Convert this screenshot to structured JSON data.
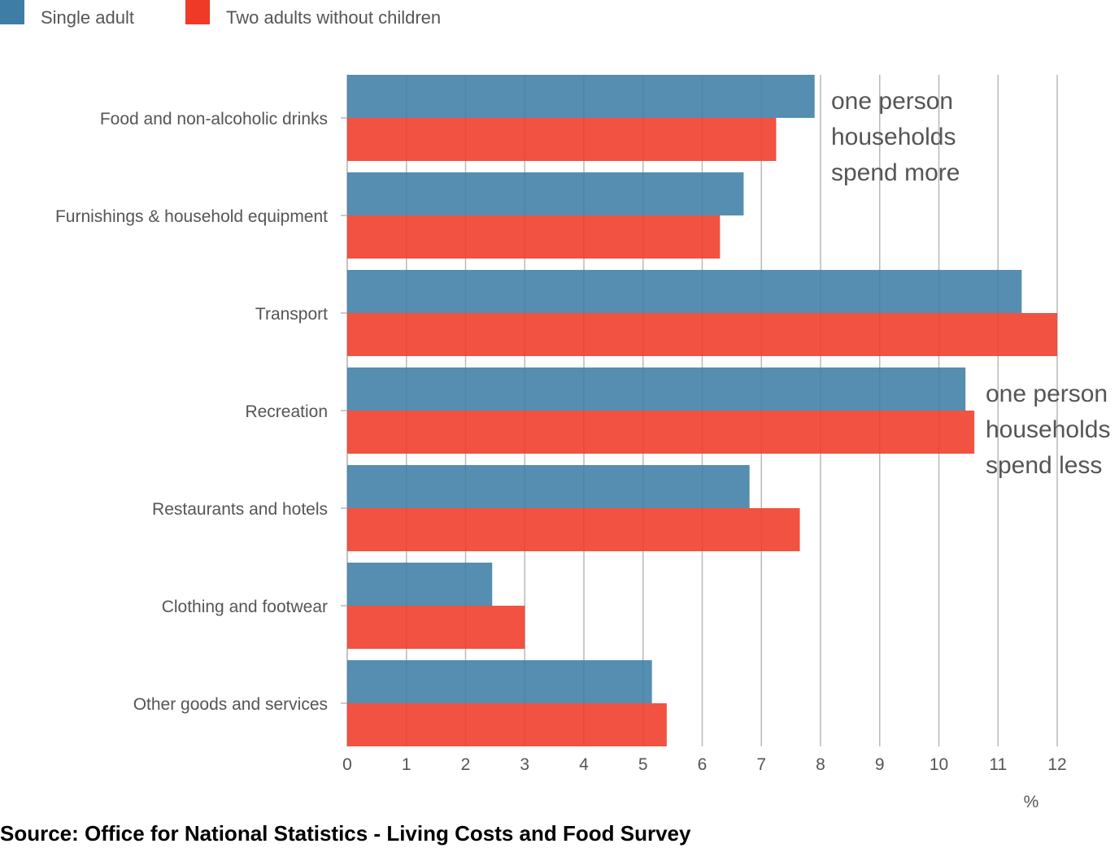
{
  "chart_data": {
    "type": "bar",
    "orientation": "horizontal",
    "categories": [
      "Food and non-alcoholic drinks",
      "Furnishings & household equipment",
      "Transport",
      "Recreation",
      "Restaurants and hotels",
      "Clothing and footwear",
      "Other goods and services"
    ],
    "series": [
      {
        "name": "Single adult",
        "color": "#3e7ea6",
        "values": [
          7.9,
          6.7,
          11.4,
          10.45,
          6.8,
          2.45,
          5.15
        ]
      },
      {
        "name": "Two adults without children",
        "color": "#ef3a27",
        "values": [
          7.25,
          6.3,
          12.0,
          10.6,
          7.65,
          3.0,
          5.4
        ]
      }
    ],
    "xlim": [
      0,
      12
    ],
    "xticks": [
      "0",
      "1",
      "2",
      "3",
      "4",
      "5",
      "6",
      "7",
      "8",
      "9",
      "10",
      "11",
      "12"
    ],
    "xlabel": "%",
    "ylabel": "",
    "title": "",
    "grid": "vertical",
    "legend_position": "top-left",
    "annotations": [
      {
        "lines": [
          "one person",
          "households",
          "spend more"
        ],
        "category": "Food and non-alcoholic drinks"
      },
      {
        "lines": [
          "one person",
          "households",
          "spend less"
        ],
        "category": "Recreation"
      }
    ]
  },
  "source": "Source: Office for National Statistics - Living Costs and Food Survey"
}
